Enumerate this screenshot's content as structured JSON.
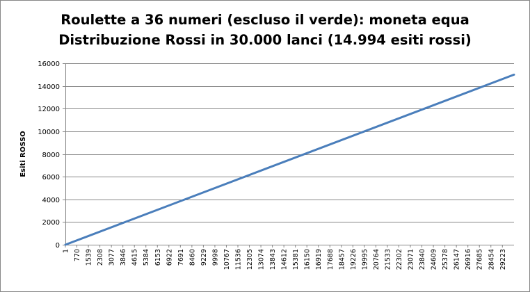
{
  "chart_data": {
    "type": "line",
    "title_line1": "Roulette a 36 numeri (escluso il verde): moneta equa",
    "title_line2": "Distribuzione Rossi in 30.000 lanci (14.994 esiti rossi)",
    "xlabel": "",
    "ylabel": "Esiti ROSSO",
    "x_tick_labels": [
      "1",
      "770",
      "1539",
      "2308",
      "3077",
      "3846",
      "4615",
      "5384",
      "6153",
      "6922",
      "7691",
      "8460",
      "9229",
      "9998",
      "10767",
      "11536",
      "12305",
      "13074",
      "13843",
      "14612",
      "15381",
      "16150",
      "16919",
      "17688",
      "18457",
      "19226",
      "19995",
      "20764",
      "21533",
      "22302",
      "23071",
      "23840",
      "24609",
      "25378",
      "26147",
      "26916",
      "27685",
      "28454",
      "29223"
    ],
    "xlim": [
      1,
      30000
    ],
    "ylim": [
      0,
      16000
    ],
    "y_ticks": [
      0,
      2000,
      4000,
      6000,
      8000,
      10000,
      12000,
      14000,
      16000
    ],
    "grid": true,
    "legend": "none",
    "line_color": "#4a7ebb",
    "series": [
      {
        "x": [
          1,
          30000
        ],
        "values": [
          0,
          14994
        ]
      }
    ]
  }
}
